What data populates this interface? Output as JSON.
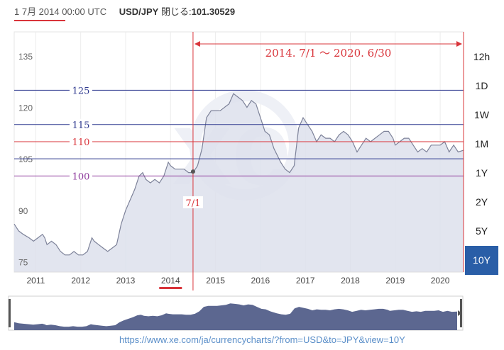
{
  "header": {
    "date": "1 7月 2014 00:00 UTC",
    "pair": "USD/JPY",
    "closing_label": "閉じる:",
    "closing_value": "101.30529"
  },
  "range_buttons": [
    "12h",
    "1D",
    "1W",
    "1M",
    "1Y",
    "2Y",
    "5Y",
    "10Y"
  ],
  "active_range": "10Y",
  "url": "https://www.xe.com/ja/currencycharts/?from=USD&to=JPY&view=10Y",
  "watermark": "xe",
  "annotations": {
    "period": "2014. 7/1 ～ 2020. 6/30",
    "start_marker": "7/1",
    "levels": [
      {
        "label": "125",
        "value": 125,
        "color": "#2f3a8f"
      },
      {
        "label": "115",
        "value": 115,
        "color": "#2f3a8f"
      },
      {
        "label": "110",
        "value": 110,
        "color": "#d9343a"
      },
      {
        "label": "105",
        "value": 105,
        "color": "#2f3a8f"
      },
      {
        "label": "100",
        "value": 100,
        "color": "#8e3a9c"
      }
    ],
    "highlight_year": "2014"
  },
  "colors": {
    "line": "#7d8299",
    "area": "#dde1ec",
    "active_button": "#2a5ea7",
    "annotation_red": "#d9343a",
    "nav_fill": "#5c6790"
  },
  "chart_data": {
    "type": "area",
    "title": "",
    "xlabel": "",
    "ylabel": "",
    "x_ticks": [
      "2011",
      "2012",
      "2013",
      "2014",
      "2015",
      "2016",
      "2017",
      "2018",
      "2019",
      "2020"
    ],
    "y_ticks": [
      75,
      90,
      105,
      120,
      135
    ],
    "ylim": [
      72,
      142
    ],
    "xlim": [
      2010.52,
      2020.52
    ],
    "grid": "vertical",
    "series": [
      {
        "x": [
          2010.52,
          2010.62,
          2010.72,
          2010.85,
          2010.95,
          2011.05,
          2011.15,
          2011.2,
          2011.25,
          2011.35,
          2011.45,
          2011.55,
          2011.65,
          2011.75,
          2011.85,
          2011.95,
          2012.05,
          2012.15,
          2012.25,
          2012.3,
          2012.4,
          2012.5,
          2012.6,
          2012.7,
          2012.8,
          2012.9,
          2013.0,
          2013.1,
          2013.2,
          2013.3,
          2013.38,
          2013.45,
          2013.55,
          2013.65,
          2013.75,
          2013.85,
          2013.95,
          2014.0,
          2014.1,
          2014.2,
          2014.3,
          2014.4,
          2014.5,
          2014.6,
          2014.7,
          2014.8,
          2014.9,
          2015.0,
          2015.1,
          2015.2,
          2015.3,
          2015.4,
          2015.5,
          2015.6,
          2015.7,
          2015.8,
          2015.9,
          2016.0,
          2016.1,
          2016.2,
          2016.3,
          2016.45,
          2016.55,
          2016.65,
          2016.75,
          2016.85,
          2016.95,
          2017.05,
          2017.15,
          2017.25,
          2017.35,
          2017.45,
          2017.55,
          2017.65,
          2017.75,
          2017.85,
          2017.95,
          2018.05,
          2018.15,
          2018.25,
          2018.35,
          2018.45,
          2018.55,
          2018.65,
          2018.75,
          2018.85,
          2018.95,
          2019.0,
          2019.1,
          2019.2,
          2019.3,
          2019.4,
          2019.5,
          2019.6,
          2019.7,
          2019.8,
          2019.9,
          2020.0,
          2020.1,
          2020.2,
          2020.3,
          2020.4,
          2020.52
        ],
        "y": [
          86,
          84,
          83,
          82,
          81,
          82,
          83,
          82,
          80,
          81,
          80,
          78,
          77,
          77,
          78,
          77,
          77,
          78,
          82,
          81,
          80,
          79,
          78,
          79,
          80,
          86,
          90,
          93,
          96,
          100,
          101,
          99,
          98,
          99,
          98,
          100,
          104,
          103,
          102,
          102,
          102,
          101,
          101,
          103,
          108,
          117,
          119,
          119,
          119,
          120,
          121,
          124,
          123,
          122,
          120,
          122,
          121,
          117,
          113,
          112,
          108,
          104,
          102,
          101,
          103,
          114,
          117,
          115,
          113,
          110,
          112,
          111,
          111,
          110,
          112,
          113,
          112,
          110,
          107,
          109,
          111,
          110,
          111,
          112,
          113,
          113,
          111,
          109,
          110,
          111,
          111,
          109,
          107,
          108,
          107,
          109,
          109,
          109,
          110,
          107,
          109,
          107,
          107.5
        ]
      }
    ]
  }
}
